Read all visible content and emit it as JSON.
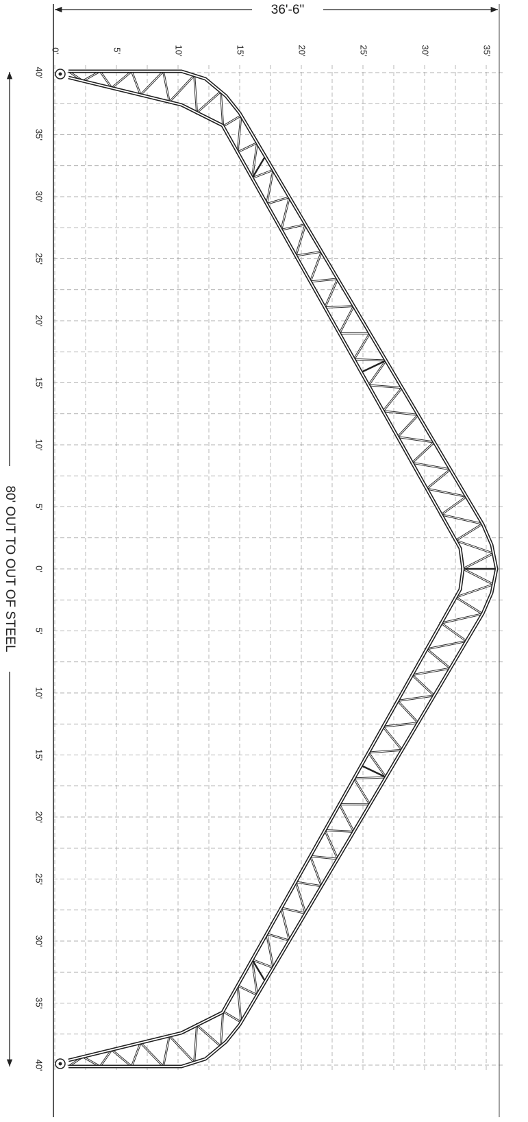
{
  "dimensions": {
    "width": "36'-6\"",
    "length": "80' OUT TO OUT OF STEEL"
  },
  "top_scale": [
    "0'",
    "5'",
    "10'",
    "15'",
    "20'",
    "25'",
    "30'",
    "35'"
  ],
  "side_scale": [
    "40'",
    "35'",
    "30'",
    "25'",
    "20'",
    "15'",
    "10'",
    "5'",
    "0'",
    "5'",
    "10'",
    "15'",
    "20'",
    "25'",
    "30'",
    "35'",
    "40'"
  ]
}
